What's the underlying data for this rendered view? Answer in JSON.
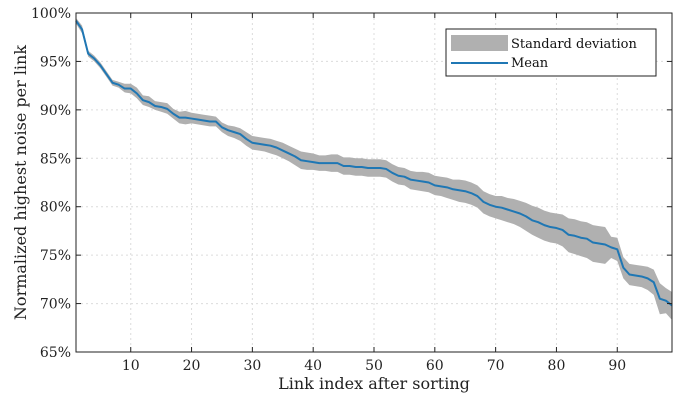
{
  "chart_data": {
    "type": "area",
    "xlabel": "Link index after sorting",
    "ylabel": "Normalized highest noise per link",
    "xlim": [
      1,
      99
    ],
    "ylim": [
      65,
      100
    ],
    "y_unit": "%",
    "xticks": [
      10,
      20,
      30,
      40,
      50,
      60,
      70,
      80,
      90
    ],
    "yticks": [
      65,
      70,
      75,
      80,
      85,
      90,
      95,
      100
    ],
    "xtick_labels": [
      "10",
      "20",
      "30",
      "40",
      "50",
      "60",
      "70",
      "80",
      "90"
    ],
    "ytick_labels": [
      "65%",
      "70%",
      "75%",
      "80%",
      "85%",
      "90%",
      "95%",
      "100%"
    ],
    "grid": true,
    "legend_position": "top-right",
    "legend": [
      "Standard deviation",
      "Mean"
    ],
    "colors": {
      "mean": "#1f77b4",
      "band": "#b0b0b0",
      "grid": "#dcdcdc",
      "axis": "#222222"
    },
    "x": [
      1,
      2,
      3,
      4,
      5,
      6,
      7,
      8,
      9,
      10,
      11,
      12,
      13,
      14,
      15,
      16,
      17,
      18,
      19,
      20,
      21,
      22,
      23,
      24,
      25,
      26,
      27,
      28,
      29,
      30,
      31,
      32,
      33,
      34,
      35,
      36,
      37,
      38,
      39,
      40,
      41,
      42,
      43,
      44,
      45,
      46,
      47,
      48,
      49,
      50,
      51,
      52,
      53,
      54,
      55,
      56,
      57,
      58,
      59,
      60,
      61,
      62,
      63,
      64,
      65,
      66,
      67,
      68,
      69,
      70,
      71,
      72,
      73,
      74,
      75,
      76,
      77,
      78,
      79,
      80,
      81,
      82,
      83,
      84,
      85,
      86,
      87,
      88,
      89,
      90,
      91,
      92,
      93,
      94,
      95,
      96,
      97,
      98,
      99
    ],
    "series": [
      {
        "name": "Mean",
        "values": [
          99.2,
          98.3,
          95.8,
          95.3,
          94.6,
          93.7,
          92.8,
          92.6,
          92.2,
          92.2,
          91.7,
          91.0,
          90.8,
          90.4,
          90.3,
          90.1,
          89.6,
          89.2,
          89.2,
          89.1,
          89.0,
          88.9,
          88.8,
          88.8,
          88.2,
          87.9,
          87.7,
          87.5,
          87.0,
          86.6,
          86.5,
          86.4,
          86.3,
          86.1,
          85.8,
          85.5,
          85.2,
          84.8,
          84.7,
          84.6,
          84.5,
          84.5,
          84.5,
          84.5,
          84.2,
          84.2,
          84.1,
          84.1,
          84.0,
          84.0,
          84.0,
          83.9,
          83.5,
          83.2,
          83.1,
          82.8,
          82.7,
          82.6,
          82.5,
          82.2,
          82.1,
          82.0,
          81.8,
          81.7,
          81.6,
          81.4,
          81.1,
          80.5,
          80.2,
          80.0,
          79.9,
          79.7,
          79.5,
          79.3,
          79.0,
          78.6,
          78.4,
          78.1,
          77.9,
          77.8,
          77.6,
          77.1,
          77.0,
          76.8,
          76.7,
          76.3,
          76.2,
          76.1,
          75.8,
          75.6,
          73.7,
          73.0,
          72.9,
          72.8,
          72.6,
          72.2,
          70.5,
          70.3,
          69.8
        ]
      },
      {
        "name": "Standard deviation",
        "band_lower": [
          98.9,
          97.9,
          95.5,
          95.0,
          94.3,
          93.4,
          92.5,
          92.3,
          91.8,
          91.7,
          91.2,
          90.5,
          90.3,
          90.0,
          89.8,
          89.6,
          89.1,
          88.6,
          88.5,
          88.6,
          88.5,
          88.4,
          88.3,
          88.3,
          87.7,
          87.3,
          87.1,
          86.8,
          86.3,
          85.9,
          85.8,
          85.7,
          85.5,
          85.3,
          85.0,
          84.7,
          84.3,
          83.9,
          83.8,
          83.8,
          83.7,
          83.7,
          83.6,
          83.6,
          83.3,
          83.3,
          83.2,
          83.2,
          83.1,
          83.1,
          83.1,
          83.0,
          82.6,
          82.3,
          82.2,
          81.8,
          81.7,
          81.6,
          81.5,
          81.2,
          81.1,
          80.9,
          80.7,
          80.5,
          80.4,
          80.2,
          79.9,
          79.3,
          79.0,
          78.8,
          78.6,
          78.4,
          78.2,
          77.9,
          77.5,
          77.1,
          76.8,
          76.5,
          76.3,
          76.2,
          75.9,
          75.3,
          75.1,
          74.9,
          74.7,
          74.3,
          74.2,
          74.1,
          74.7,
          74.4,
          72.6,
          71.9,
          71.8,
          71.7,
          71.4,
          70.9,
          68.9,
          69.0,
          68.3
        ],
        "band_upper": [
          99.5,
          98.7,
          96.1,
          95.6,
          94.9,
          94.0,
          93.1,
          92.9,
          92.7,
          92.7,
          92.3,
          91.5,
          91.4,
          90.9,
          90.8,
          90.7,
          90.1,
          89.8,
          89.9,
          89.7,
          89.6,
          89.5,
          89.4,
          89.3,
          88.7,
          88.4,
          88.3,
          88.1,
          87.7,
          87.3,
          87.2,
          87.1,
          87.0,
          86.8,
          86.6,
          86.3,
          86.0,
          85.7,
          85.6,
          85.5,
          85.3,
          85.3,
          85.4,
          85.4,
          85.1,
          85.1,
          85.0,
          85.0,
          84.9,
          84.9,
          84.9,
          84.8,
          84.4,
          84.1,
          84.0,
          83.7,
          83.6,
          83.6,
          83.5,
          83.2,
          83.1,
          83.0,
          82.8,
          82.8,
          82.7,
          82.5,
          82.2,
          81.6,
          81.3,
          81.1,
          81.1,
          80.9,
          80.8,
          80.6,
          80.4,
          80.1,
          79.9,
          79.6,
          79.4,
          79.3,
          79.2,
          78.8,
          78.7,
          78.5,
          78.4,
          78.1,
          78.0,
          77.9,
          76.9,
          76.8,
          74.8,
          74.1,
          74.0,
          73.9,
          73.8,
          73.5,
          72.1,
          71.6,
          71.2
        ]
      }
    ]
  }
}
